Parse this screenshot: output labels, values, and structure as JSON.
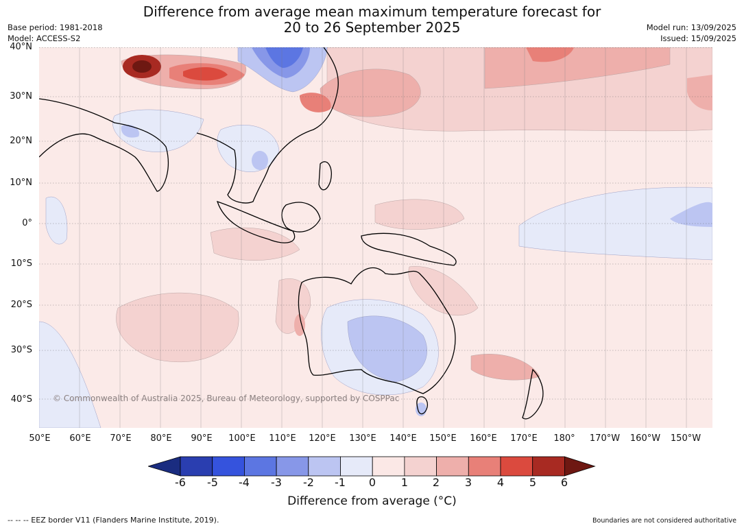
{
  "title_line1": "Difference from average mean maximum temperature forecast for",
  "title_line2": "20 to 26 September 2025",
  "base_period": "Base period: 1981-2018",
  "model": "Model: ACCESS-S2",
  "model_run": "Model run: 13/09/2025",
  "issued": "Issued: 15/09/2025",
  "watermark": "© Commonwealth of Australia 2025, Bureau of Meteorology, supported by COSPPac",
  "lat_labels": [
    "40°N",
    "30°N",
    "20°N",
    "10°N",
    "0°",
    "10°S",
    "20°S",
    "30°S",
    "40°S"
  ],
  "lon_labels": [
    "50°E",
    "60°E",
    "70°E",
    "80°E",
    "90°E",
    "100°E",
    "110°E",
    "120°E",
    "130°E",
    "140°E",
    "150°E",
    "160°E",
    "170°E",
    "180°",
    "170°W",
    "160°W",
    "150°W"
  ],
  "colorbar": {
    "ticks": [
      "-6",
      "-5",
      "-4",
      "-3",
      "-2",
      "-1",
      "0",
      "1",
      "2",
      "3",
      "4",
      "5",
      "6"
    ],
    "colors": [
      "#1a2c80",
      "#2a3eb0",
      "#3553dd",
      "#5c76e2",
      "#8797e8",
      "#bcc5f2",
      "#e6eaf9",
      "#fbe8e6",
      "#f4d2d0",
      "#eeafab",
      "#e88078",
      "#db4a3e",
      "#a82a22",
      "#6e1812"
    ],
    "title": "Difference from average (°C)"
  },
  "footer_left": "--  --  -- EEZ border V11 (Flanders Marine Institute, 2019).",
  "footer_right": "Boundaries are not considered authoritative"
}
